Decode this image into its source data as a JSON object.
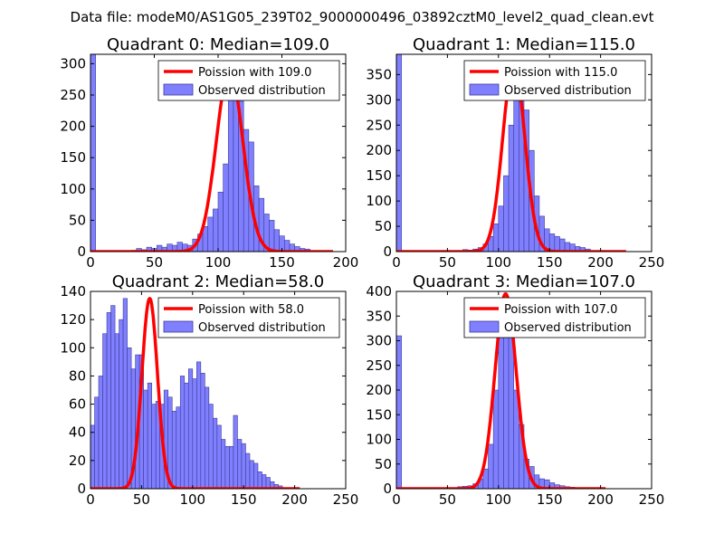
{
  "figure_title": "Data file: modeM0/AS1G05_239T02_9000000496_03892cztM0_level2_quad_clean.evt",
  "colors": {
    "bar_fill": "#8080ff",
    "bar_edge": "#3a3a9a",
    "curve": "#ff0000"
  },
  "chart_data": [
    {
      "type": "bar",
      "title": "Quadrant 0: Median=109.0",
      "xlim": [
        0,
        200
      ],
      "ylim": [
        0,
        315
      ],
      "xticks": [
        0,
        50,
        100,
        150,
        200
      ],
      "yticks": [
        0,
        50,
        100,
        150,
        200,
        250,
        300
      ],
      "bin_width": 4,
      "bins": [
        [
          0,
          315
        ],
        [
          32,
          2
        ],
        [
          36,
          5
        ],
        [
          40,
          3
        ],
        [
          44,
          7
        ],
        [
          48,
          5
        ],
        [
          52,
          10
        ],
        [
          56,
          7
        ],
        [
          60,
          12
        ],
        [
          64,
          10
        ],
        [
          68,
          15
        ],
        [
          72,
          12
        ],
        [
          76,
          10
        ],
        [
          80,
          20
        ],
        [
          84,
          28
        ],
        [
          88,
          40
        ],
        [
          92,
          55
        ],
        [
          96,
          68
        ],
        [
          100,
          95
        ],
        [
          104,
          140
        ],
        [
          108,
          255
        ],
        [
          112,
          290
        ],
        [
          116,
          240
        ],
        [
          120,
          195
        ],
        [
          124,
          175
        ],
        [
          128,
          105
        ],
        [
          132,
          85
        ],
        [
          136,
          60
        ],
        [
          140,
          50
        ],
        [
          144,
          35
        ],
        [
          148,
          25
        ],
        [
          152,
          18
        ],
        [
          156,
          12
        ],
        [
          160,
          8
        ],
        [
          164,
          5
        ],
        [
          168,
          4
        ]
      ],
      "legend": [
        "Poission with 109.0",
        "Observed distribution"
      ],
      "curve": {
        "label": "Poission with 109.0",
        "mean": 109.0,
        "peak": 290,
        "xmax": 190
      }
    },
    {
      "type": "bar",
      "title": "Quadrant 1: Median=115.0",
      "xlim": [
        0,
        250
      ],
      "ylim": [
        0,
        390
      ],
      "xticks": [
        0,
        50,
        100,
        150,
        200,
        250
      ],
      "yticks": [
        0,
        50,
        100,
        150,
        200,
        250,
        300,
        350
      ],
      "bin_width": 5,
      "bins": [
        [
          0,
          390
        ],
        [
          60,
          2
        ],
        [
          65,
          4
        ],
        [
          70,
          3
        ],
        [
          75,
          5
        ],
        [
          80,
          8
        ],
        [
          85,
          15
        ],
        [
          90,
          30
        ],
        [
          95,
          55
        ],
        [
          100,
          90
        ],
        [
          105,
          150
        ],
        [
          110,
          250
        ],
        [
          115,
          370
        ],
        [
          120,
          330
        ],
        [
          125,
          280
        ],
        [
          130,
          200
        ],
        [
          135,
          110
        ],
        [
          140,
          70
        ],
        [
          145,
          45
        ],
        [
          150,
          35
        ],
        [
          155,
          30
        ],
        [
          160,
          25
        ],
        [
          165,
          18
        ],
        [
          170,
          15
        ],
        [
          175,
          10
        ],
        [
          180,
          8
        ],
        [
          185,
          5
        ]
      ],
      "legend": [
        "Poission with 115.0",
        "Observed distribution"
      ],
      "curve": {
        "label": "Poission with 115.0",
        "mean": 115.0,
        "peak": 375,
        "xmax": 225
      }
    },
    {
      "type": "bar",
      "title": "Quadrant 2: Median=58.0",
      "xlim": [
        0,
        250
      ],
      "ylim": [
        0,
        140
      ],
      "xticks": [
        0,
        50,
        100,
        150,
        200,
        250
      ],
      "yticks": [
        0,
        20,
        40,
        60,
        80,
        100,
        120,
        140
      ],
      "bin_width": 4,
      "bins": [
        [
          0,
          45
        ],
        [
          4,
          65
        ],
        [
          8,
          80
        ],
        [
          12,
          110
        ],
        [
          16,
          125
        ],
        [
          20,
          130
        ],
        [
          24,
          110
        ],
        [
          28,
          120
        ],
        [
          32,
          135
        ],
        [
          36,
          100
        ],
        [
          40,
          85
        ],
        [
          44,
          95
        ],
        [
          48,
          95
        ],
        [
          52,
          70
        ],
        [
          56,
          75
        ],
        [
          60,
          60
        ],
        [
          64,
          62
        ],
        [
          68,
          60
        ],
        [
          72,
          70
        ],
        [
          76,
          65
        ],
        [
          80,
          55
        ],
        [
          84,
          58
        ],
        [
          88,
          80
        ],
        [
          92,
          75
        ],
        [
          96,
          85
        ],
        [
          100,
          78
        ],
        [
          104,
          90
        ],
        [
          108,
          82
        ],
        [
          112,
          72
        ],
        [
          116,
          60
        ],
        [
          120,
          50
        ],
        [
          124,
          45
        ],
        [
          128,
          35
        ],
        [
          132,
          30
        ],
        [
          136,
          30
        ],
        [
          140,
          52
        ],
        [
          144,
          35
        ],
        [
          148,
          32
        ],
        [
          152,
          25
        ],
        [
          156,
          20
        ],
        [
          160,
          18
        ],
        [
          164,
          12
        ],
        [
          168,
          10
        ],
        [
          172,
          8
        ],
        [
          176,
          5
        ],
        [
          180,
          3
        ],
        [
          184,
          2
        ]
      ],
      "legend": [
        "Poission with 58.0",
        "Observed distribution"
      ],
      "curve": {
        "label": "Poission with 58.0",
        "mean": 58.0,
        "peak": 135,
        "xmax": 205
      }
    },
    {
      "type": "bar",
      "title": "Quadrant 3: Median=107.0",
      "xlim": [
        0,
        250
      ],
      "ylim": [
        0,
        400
      ],
      "xticks": [
        0,
        50,
        100,
        150,
        200,
        250
      ],
      "yticks": [
        0,
        50,
        100,
        150,
        200,
        250,
        300,
        350,
        400
      ],
      "bin_width": 5,
      "bins": [
        [
          0,
          310
        ],
        [
          55,
          2
        ],
        [
          60,
          4
        ],
        [
          65,
          5
        ],
        [
          70,
          6
        ],
        [
          75,
          10
        ],
        [
          80,
          20
        ],
        [
          85,
          40
        ],
        [
          90,
          90
        ],
        [
          95,
          200
        ],
        [
          100,
          320
        ],
        [
          105,
          385
        ],
        [
          110,
          330
        ],
        [
          115,
          200
        ],
        [
          120,
          130
        ],
        [
          125,
          60
        ],
        [
          130,
          45
        ],
        [
          135,
          28
        ],
        [
          140,
          20
        ],
        [
          145,
          18
        ],
        [
          150,
          12
        ],
        [
          155,
          8
        ],
        [
          160,
          6
        ],
        [
          165,
          4
        ],
        [
          170,
          3
        ],
        [
          175,
          2
        ]
      ],
      "legend": [
        "Poission with 107.0",
        "Observed distribution"
      ],
      "curve": {
        "label": "Poission with 107.0",
        "mean": 107.0,
        "peak": 395,
        "xmax": 205
      }
    }
  ]
}
